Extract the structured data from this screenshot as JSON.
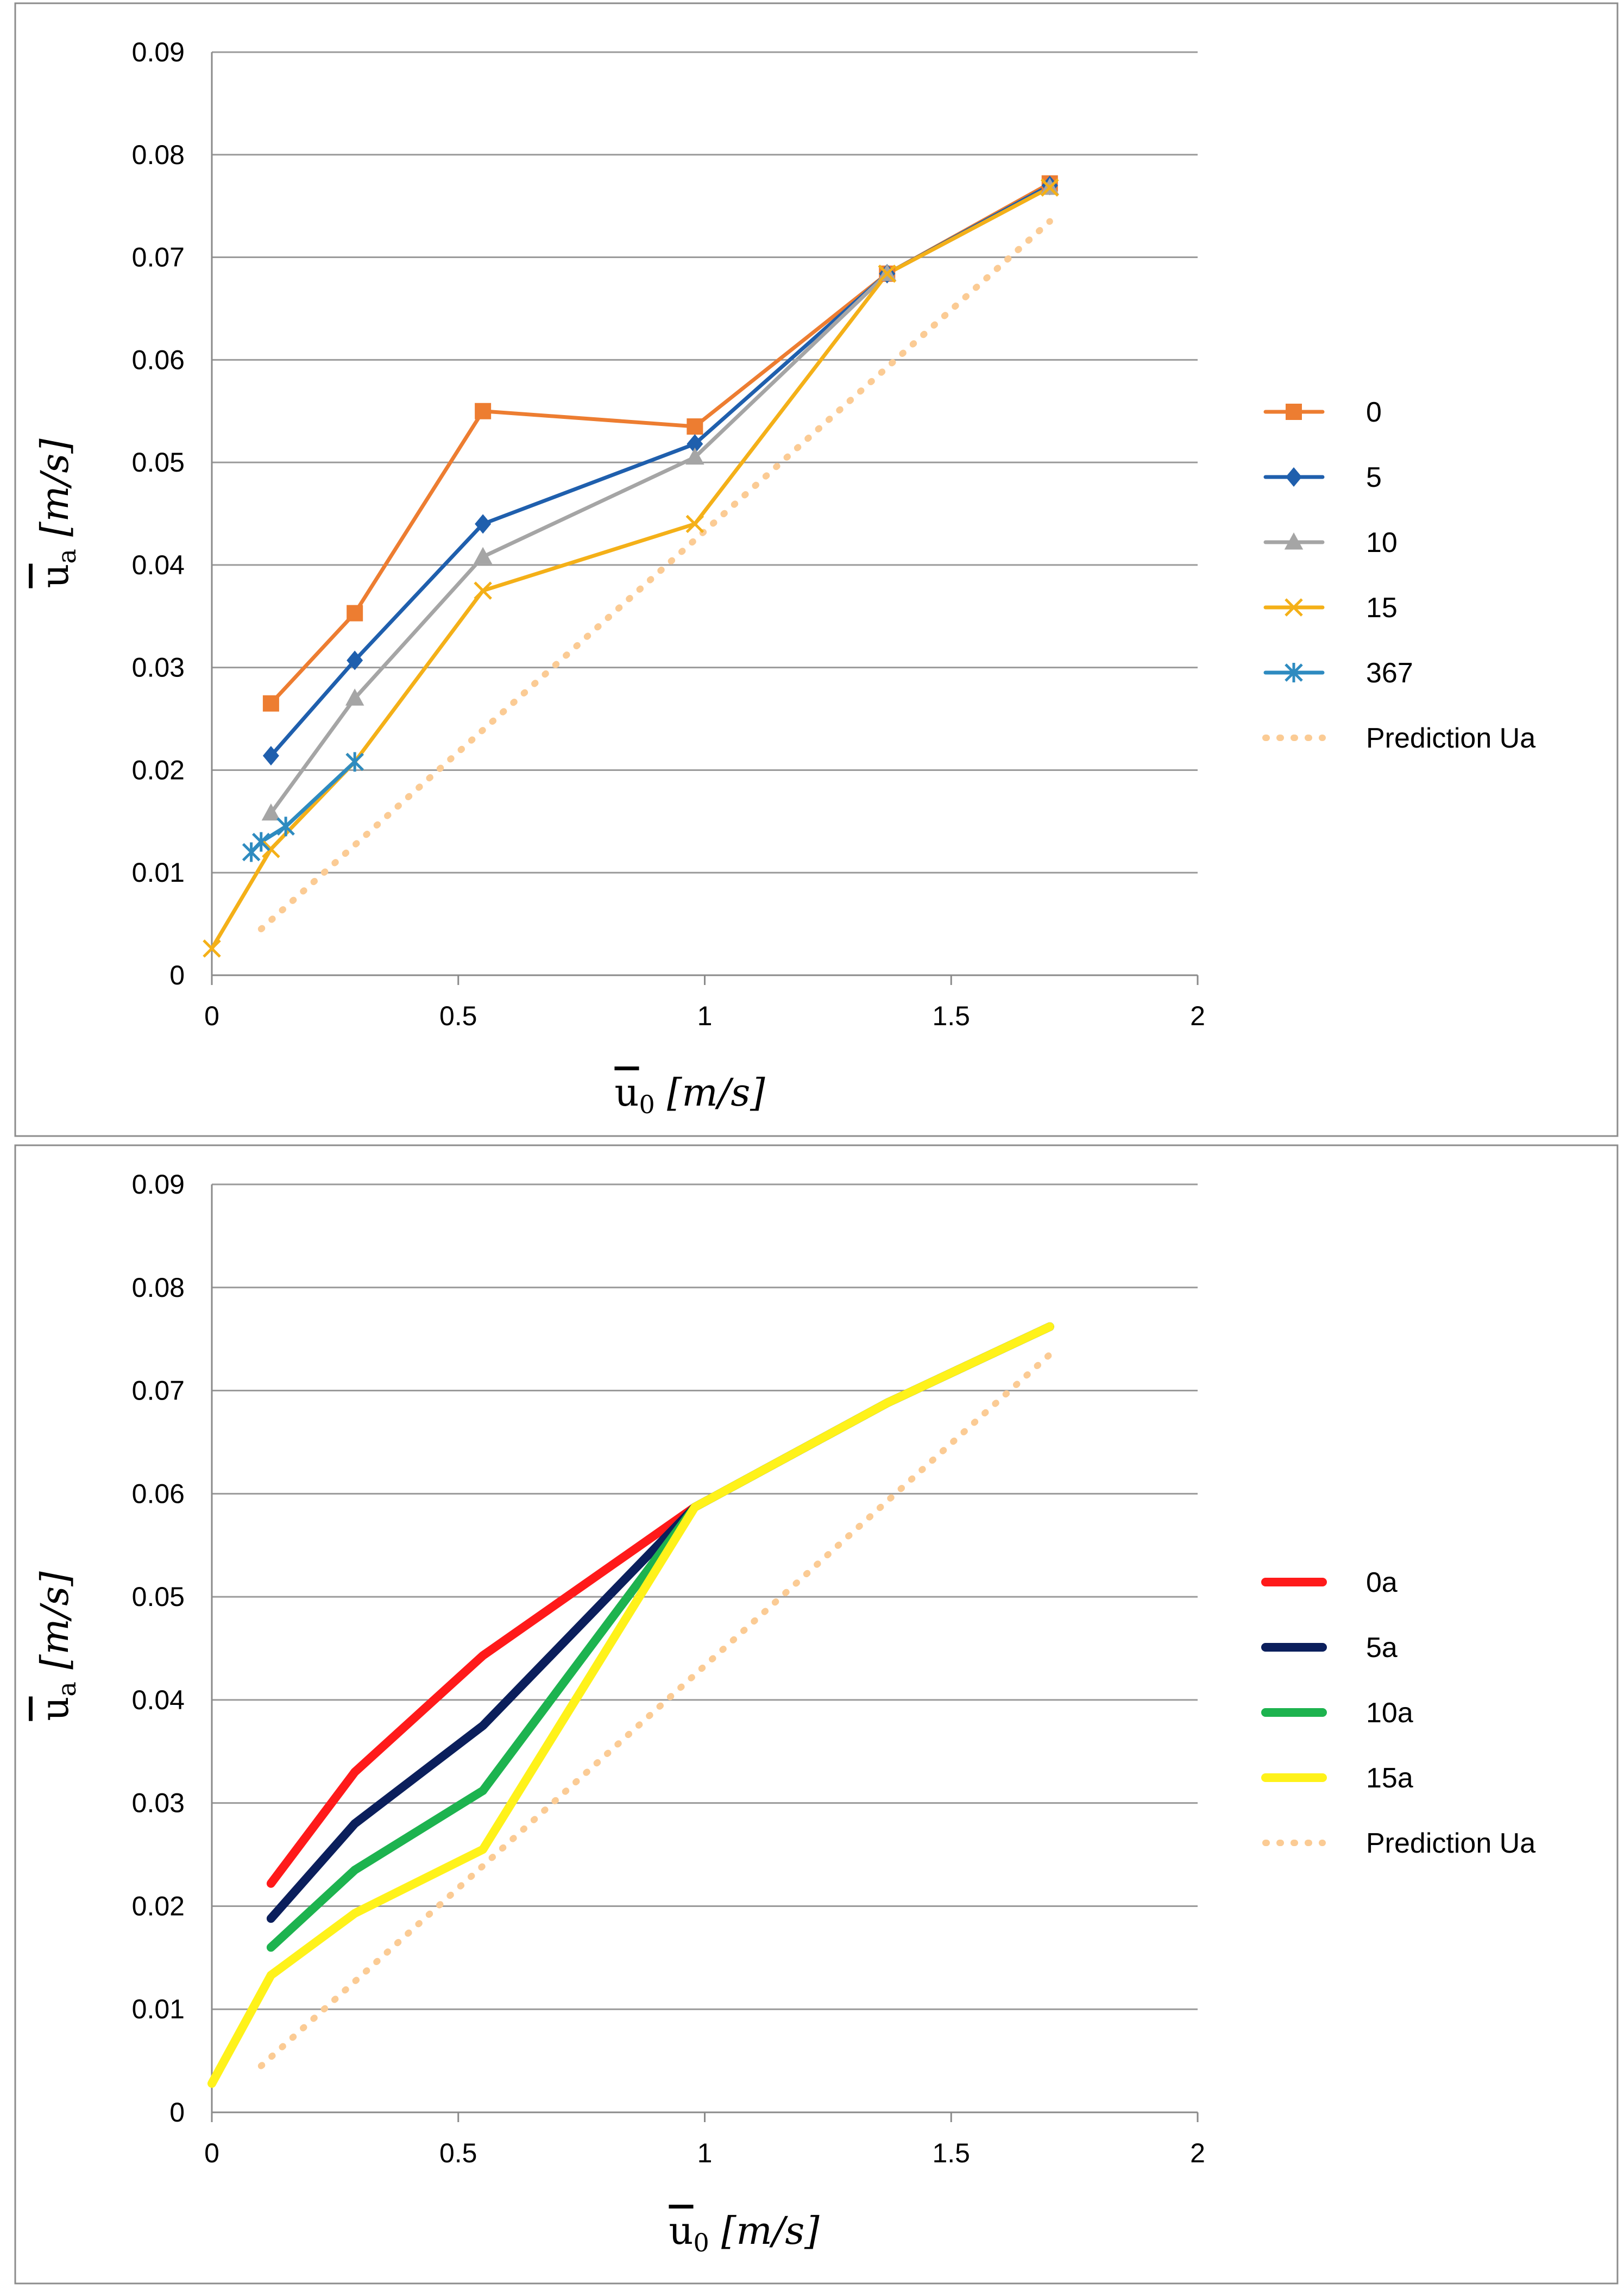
{
  "chart_data": [
    {
      "type": "line",
      "title": "",
      "xlabel": "u0 [m/s]",
      "ylabel": "ua [m/s]",
      "xlabel_parts": {
        "symbol": "u",
        "subscript": "0",
        "unit": "[m/s]"
      },
      "ylabel_parts": {
        "symbol": "u",
        "subscript": "a",
        "unit": "[m/s]"
      },
      "xlim": [
        0,
        2
      ],
      "ylim": [
        0,
        0.09
      ],
      "x_ticks": [
        "0",
        "0.5",
        "1",
        "1.5",
        "2"
      ],
      "y_ticks": [
        "0",
        "0.01",
        "0.02",
        "0.03",
        "0.04",
        "0.05",
        "0.06",
        "0.07",
        "0.08",
        "0.09"
      ],
      "grid": true,
      "legend_position": "right",
      "series": [
        {
          "name": "0",
          "color": "#ED7D31",
          "marker": "square",
          "style": "solid",
          "x": [
            0.12,
            0.29,
            0.55,
            0.98,
            1.37,
            1.7
          ],
          "y": [
            0.0265,
            0.0353,
            0.055,
            0.0535,
            0.0684,
            0.0772
          ]
        },
        {
          "name": "5",
          "color": "#1F5FAD",
          "marker": "diamond",
          "style": "solid",
          "x": [
            0.12,
            0.29,
            0.55,
            0.98,
            1.37,
            1.7
          ],
          "y": [
            0.0214,
            0.0307,
            0.044,
            0.0518,
            0.0684,
            0.077
          ]
        },
        {
          "name": "10",
          "color": "#A5A5A5",
          "marker": "triangle",
          "style": "solid",
          "x": [
            0.12,
            0.29,
            0.55,
            0.98,
            1.37,
            1.7
          ],
          "y": [
            0.0158,
            0.027,
            0.0408,
            0.0505,
            0.0684,
            0.0768
          ]
        },
        {
          "name": "15",
          "color": "#F4B018",
          "marker": "x",
          "style": "solid",
          "x": [
            0.0,
            0.12,
            0.29,
            0.55,
            0.98,
            1.37,
            1.7
          ],
          "y": [
            0.0026,
            0.0123,
            0.0208,
            0.0375,
            0.044,
            0.0684,
            0.0768
          ]
        },
        {
          "name": "367",
          "color": "#2E8BC0",
          "marker": "asterisk",
          "style": "solid",
          "x": [
            0.08,
            0.1,
            0.15,
            0.29
          ],
          "y": [
            0.012,
            0.013,
            0.0145,
            0.0208
          ]
        },
        {
          "name": "Prediction Ua",
          "color": "#FBCB94",
          "marker": "none",
          "style": "dotted",
          "x": [
            0.1,
            1.7
          ],
          "y": [
            0.0045,
            0.0735
          ]
        }
      ]
    },
    {
      "type": "line",
      "title": "",
      "xlabel": "u0 [m/s]",
      "ylabel": "ua [m/s]",
      "xlabel_parts": {
        "symbol": "u",
        "subscript": "0",
        "unit": "[m/s]"
      },
      "ylabel_parts": {
        "symbol": "u",
        "subscript": "a",
        "unit": "[m/s]"
      },
      "xlim": [
        0,
        2
      ],
      "ylim": [
        0,
        0.09
      ],
      "x_ticks": [
        "0",
        "0.5",
        "1",
        "1.5",
        "2"
      ],
      "y_ticks": [
        "0",
        "0.01",
        "0.02",
        "0.03",
        "0.04",
        "0.05",
        "0.06",
        "0.07",
        "0.08",
        "0.09"
      ],
      "grid": true,
      "legend_position": "right",
      "series": [
        {
          "name": "0a",
          "color": "#FF1A1A",
          "marker": "none",
          "style": "thick",
          "x": [
            0.12,
            0.29,
            0.55,
            0.98,
            1.37,
            1.7
          ],
          "y": [
            0.0222,
            0.033,
            0.0443,
            0.0587,
            0.0688,
            0.0762
          ]
        },
        {
          "name": "5a",
          "color": "#0B1F5C",
          "marker": "none",
          "style": "thick",
          "x": [
            0.12,
            0.29,
            0.55,
            0.98,
            1.37,
            1.7
          ],
          "y": [
            0.0188,
            0.028,
            0.0375,
            0.0587,
            0.0688,
            0.0762
          ]
        },
        {
          "name": "10a",
          "color": "#1DB34F",
          "marker": "none",
          "style": "thick",
          "x": [
            0.12,
            0.29,
            0.55,
            0.98,
            1.37,
            1.7
          ],
          "y": [
            0.016,
            0.0235,
            0.0312,
            0.0587,
            0.0688,
            0.0762
          ]
        },
        {
          "name": "15a",
          "color": "#FFF21A",
          "marker": "none",
          "style": "thick",
          "x": [
            0.0,
            0.12,
            0.29,
            0.55,
            0.98,
            1.37,
            1.7
          ],
          "y": [
            0.0028,
            0.0133,
            0.0193,
            0.0255,
            0.0587,
            0.0688,
            0.0762
          ]
        },
        {
          "name": "Prediction Ua",
          "color": "#FBCB94",
          "marker": "none",
          "style": "dotted",
          "x": [
            0.1,
            1.7
          ],
          "y": [
            0.0045,
            0.0735
          ]
        }
      ]
    }
  ]
}
